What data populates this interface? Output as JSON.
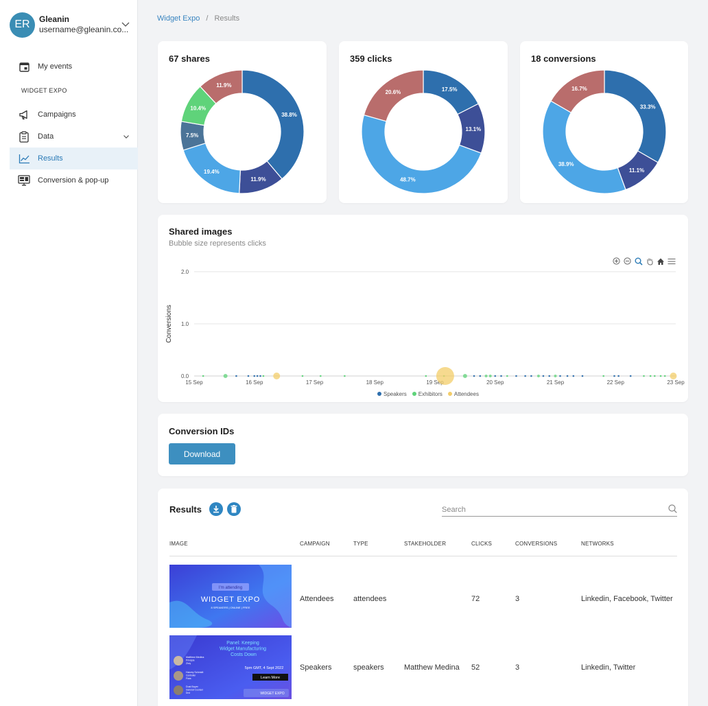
{
  "user": {
    "initials": "ER",
    "name": "Gleanin",
    "email": "username@gleanin.co..."
  },
  "sidebar": {
    "my_events": "My events",
    "section": "WIDGET EXPO",
    "items": [
      {
        "label": "Campaigns",
        "icon": "megaphone-icon"
      },
      {
        "label": "Data",
        "icon": "clipboard-icon"
      },
      {
        "label": "Results",
        "icon": "line-chart-icon"
      },
      {
        "label": "Conversion & pop-up",
        "icon": "monitor-icon"
      }
    ]
  },
  "breadcrumb": {
    "event": "Widget Expo",
    "separator": "/",
    "current": "Results"
  },
  "colors": {
    "speakers": "#2e6fad",
    "speakers_light": "#4da6e6",
    "speakers_dark": "#3d4f97",
    "steel": "#4b7498",
    "exhibitors": "#5fd37a",
    "attendees": "#f3cd6a",
    "rose": "#b96d6c",
    "accent": "#3d8fc0"
  },
  "donuts": [
    {
      "title": "67 shares",
      "slices": [
        {
          "value": 38.8,
          "label": "38.8%",
          "color": "#2e6fad"
        },
        {
          "value": 11.9,
          "label": "11.9%",
          "color": "#3d4f97"
        },
        {
          "value": 19.4,
          "label": "19.4%",
          "color": "#4da6e6"
        },
        {
          "value": 7.5,
          "label": "7.5%",
          "color": "#4b7498"
        },
        {
          "value": 10.4,
          "label": "10.4%",
          "color": "#5fd37a"
        },
        {
          "value": 11.9,
          "label": "11.9%",
          "color": "#b96d6c"
        }
      ]
    },
    {
      "title": "359 clicks",
      "slices": [
        {
          "value": 17.5,
          "label": "17.5%",
          "color": "#2e6fad"
        },
        {
          "value": 13.1,
          "label": "13.1%",
          "color": "#3d4f97"
        },
        {
          "value": 48.7,
          "label": "48.7%",
          "color": "#4da6e6"
        },
        {
          "value": 20.6,
          "label": "20.6%",
          "color": "#b96d6c"
        }
      ]
    },
    {
      "title": "18 conversions",
      "slices": [
        {
          "value": 33.3,
          "label": "33.3%",
          "color": "#2e6fad"
        },
        {
          "value": 11.1,
          "label": "11.1%",
          "color": "#3d4f97"
        },
        {
          "value": 38.9,
          "label": "38.9%",
          "color": "#4da6e6"
        },
        {
          "value": 16.7,
          "label": "16.7%",
          "color": "#b96d6c"
        }
      ]
    }
  ],
  "bubble": {
    "title": "Shared images",
    "subtitle": "Bubble size represents clicks",
    "ylabel": "Conversions",
    "yticks": [
      "2.0",
      "1.0",
      "0.0"
    ],
    "xticks": [
      "15 Sep",
      "16 Sep",
      "17 Sep",
      "18 Sep",
      "19 Sep",
      "20 Sep",
      "21 Sep",
      "22 Sep",
      "23 Sep"
    ],
    "legend": [
      {
        "name": "Speakers",
        "color": "#2e6fad"
      },
      {
        "name": "Exhibitors",
        "color": "#5fd37a"
      },
      {
        "name": "Attendees",
        "color": "#f3cd6a"
      }
    ],
    "points": [
      {
        "day": 0.15,
        "y": 0,
        "size": 2,
        "s": "exhibitors"
      },
      {
        "day": 0.52,
        "y": 0,
        "size": 6,
        "s": "exhibitors"
      },
      {
        "day": 0.7,
        "y": 0,
        "size": 2,
        "s": "speakers"
      },
      {
        "day": 0.9,
        "y": 0,
        "size": 2,
        "s": "speakers"
      },
      {
        "day": 1.0,
        "y": 0,
        "size": 2,
        "s": "speakers"
      },
      {
        "day": 1.05,
        "y": 0,
        "size": 2,
        "s": "speakers"
      },
      {
        "day": 1.1,
        "y": 0,
        "size": 2,
        "s": "speakers"
      },
      {
        "day": 1.15,
        "y": 0,
        "size": 2,
        "s": "exhibitors"
      },
      {
        "day": 1.37,
        "y": 0,
        "size": 10,
        "s": "attendees"
      },
      {
        "day": 1.8,
        "y": 0,
        "size": 2,
        "s": "exhibitors"
      },
      {
        "day": 2.1,
        "y": 0,
        "size": 2,
        "s": "exhibitors"
      },
      {
        "day": 2.5,
        "y": 0,
        "size": 2,
        "s": "exhibitors"
      },
      {
        "day": 3.85,
        "y": 0,
        "size": 2,
        "s": "exhibitors"
      },
      {
        "day": 4.15,
        "y": 0,
        "size": 2,
        "s": "exhibitors"
      },
      {
        "day": 4.17,
        "y": 0,
        "size": 26,
        "s": "attendees"
      },
      {
        "day": 4.5,
        "y": 0,
        "size": 6,
        "s": "exhibitors"
      },
      {
        "day": 4.65,
        "y": 0,
        "size": 2,
        "s": "speakers"
      },
      {
        "day": 4.75,
        "y": 0,
        "size": 2,
        "s": "speakers"
      },
      {
        "day": 4.85,
        "y": 0,
        "size": 4,
        "s": "exhibitors"
      },
      {
        "day": 4.92,
        "y": 0,
        "size": 4,
        "s": "exhibitors"
      },
      {
        "day": 5.0,
        "y": 0,
        "size": 2,
        "s": "speakers"
      },
      {
        "day": 5.1,
        "y": 0,
        "size": 2,
        "s": "speakers"
      },
      {
        "day": 5.2,
        "y": 0,
        "size": 2,
        "s": "exhibitors"
      },
      {
        "day": 5.35,
        "y": 0,
        "size": 2,
        "s": "speakers"
      },
      {
        "day": 5.5,
        "y": 0,
        "size": 2,
        "s": "speakers"
      },
      {
        "day": 5.6,
        "y": 0,
        "size": 2,
        "s": "speakers"
      },
      {
        "day": 5.72,
        "y": 0,
        "size": 4,
        "s": "exhibitors"
      },
      {
        "day": 5.8,
        "y": 0,
        "size": 2,
        "s": "speakers"
      },
      {
        "day": 5.9,
        "y": 0,
        "size": 2,
        "s": "speakers"
      },
      {
        "day": 6.0,
        "y": 0,
        "size": 4,
        "s": "exhibitors"
      },
      {
        "day": 6.08,
        "y": 0,
        "size": 2,
        "s": "speakers"
      },
      {
        "day": 6.2,
        "y": 0,
        "size": 2,
        "s": "speakers"
      },
      {
        "day": 6.3,
        "y": 0,
        "size": 2,
        "s": "speakers"
      },
      {
        "day": 6.45,
        "y": 0,
        "size": 2,
        "s": "speakers"
      },
      {
        "day": 6.8,
        "y": 0,
        "size": 2,
        "s": "exhibitors"
      },
      {
        "day": 6.98,
        "y": 0,
        "size": 2,
        "s": "speakers"
      },
      {
        "day": 7.05,
        "y": 0,
        "size": 2,
        "s": "speakers"
      },
      {
        "day": 7.25,
        "y": 0,
        "size": 2,
        "s": "speakers"
      },
      {
        "day": 7.47,
        "y": 0,
        "size": 2,
        "s": "exhibitors"
      },
      {
        "day": 7.58,
        "y": 0,
        "size": 2,
        "s": "exhibitors"
      },
      {
        "day": 7.65,
        "y": 0,
        "size": 2,
        "s": "exhibitors"
      },
      {
        "day": 7.75,
        "y": 0,
        "size": 2,
        "s": "exhibitors"
      },
      {
        "day": 7.82,
        "y": 0,
        "size": 2,
        "s": "exhibitors"
      },
      {
        "day": 7.96,
        "y": 0,
        "size": 10,
        "s": "attendees"
      },
      {
        "day": 8.33,
        "y": 0,
        "size": 2,
        "s": "exhibitors"
      },
      {
        "day": 8.55,
        "y": 0,
        "size": 2,
        "s": "speakers"
      },
      {
        "day": 8.95,
        "y": 0,
        "size": 2,
        "s": "speakers"
      }
    ]
  },
  "conversion_ids": {
    "title": "Conversion IDs",
    "download_label": "Download"
  },
  "results": {
    "title": "Results",
    "search_placeholder": "Search",
    "headers": [
      "IMAGE",
      "CAMPAIGN",
      "TYPE",
      "STAKEHOLDER",
      "CLICKS",
      "CONVERSIONS",
      "NETWORKS"
    ],
    "rows": [
      {
        "campaign": "Attendees",
        "type": "attendees",
        "stakeholder": "",
        "clicks": "72",
        "conversions": "3",
        "networks": "Linkedin, Facebook, Twitter",
        "thumb": {
          "badge": "I'm attending",
          "brand": "WIDGET EXPO",
          "tagline": "8 SPEAKERS | ONLINE | FREE"
        }
      },
      {
        "campaign": "Speakers",
        "type": "speakers",
        "stakeholder": "Matthew Medina",
        "clicks": "52",
        "conversions": "3",
        "networks": "Linkedin, Twitter",
        "thumb": {
          "headline": "Panel: Keeping Widget Manufacturing Costs Down",
          "time": "5pm GMT, 4 Sept 2022",
          "cta": "Learn More",
          "brand": "WIDGET EXPO",
          "people": [
            {
              "name": "Matthew Medina",
              "role": "Principle",
              "org": "Zirvy"
            },
            {
              "name": "Harvey Schmidt",
              "role": "Controller",
              "org": "Fiora"
            },
            {
              "name": "Dust Boyer",
              "role": "General Counsel",
              "org": "Droi"
            }
          ]
        }
      }
    ]
  }
}
